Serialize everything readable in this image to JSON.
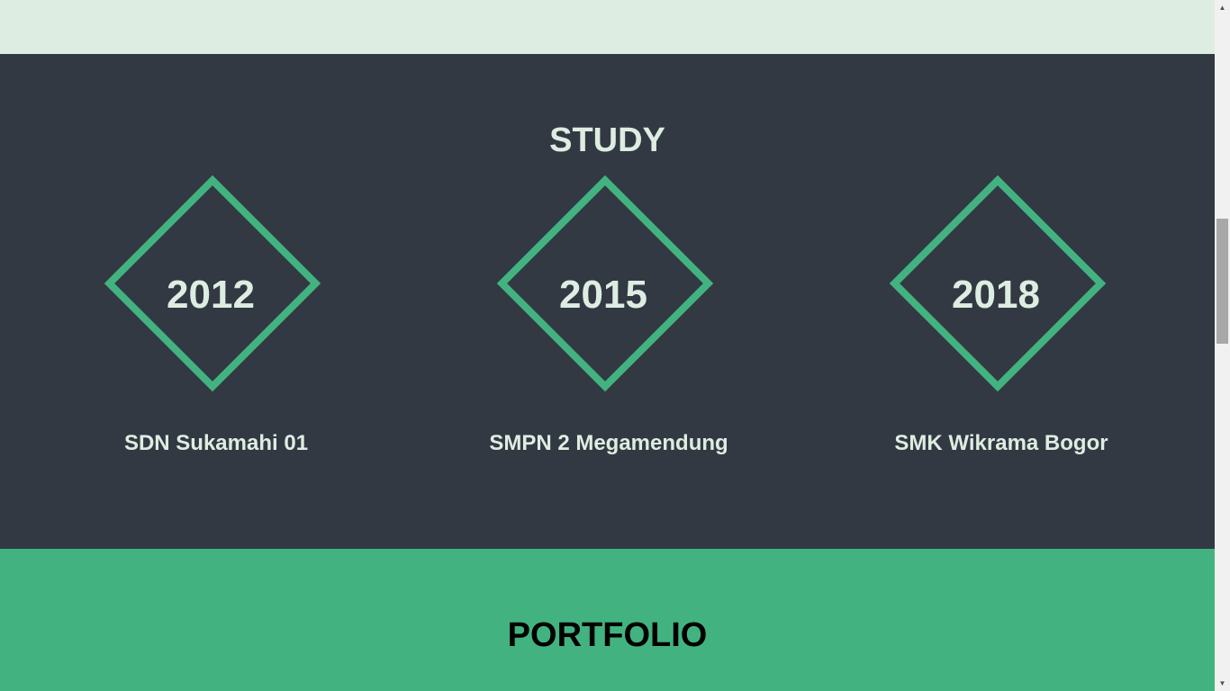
{
  "colors": {
    "top_band": "#deede1",
    "study_bg": "#323943",
    "accent": "#42b380",
    "light_text": "#deede1",
    "portfolio_title": "#000000"
  },
  "study": {
    "title": "STUDY",
    "items": [
      {
        "year": "2012",
        "school": "SDN Sukamahi 01",
        "icon": "diamond-frame"
      },
      {
        "year": "2015",
        "school": "SMPN 2 Megamendung",
        "icon": "diamond-frame"
      },
      {
        "year": "2018",
        "school": "SMK Wikrama Bogor",
        "icon": "diamond-frame"
      }
    ]
  },
  "portfolio": {
    "title": "PORTFOLIO"
  },
  "scrollbar": {
    "up_icon": "▲",
    "down_icon": "▼"
  }
}
